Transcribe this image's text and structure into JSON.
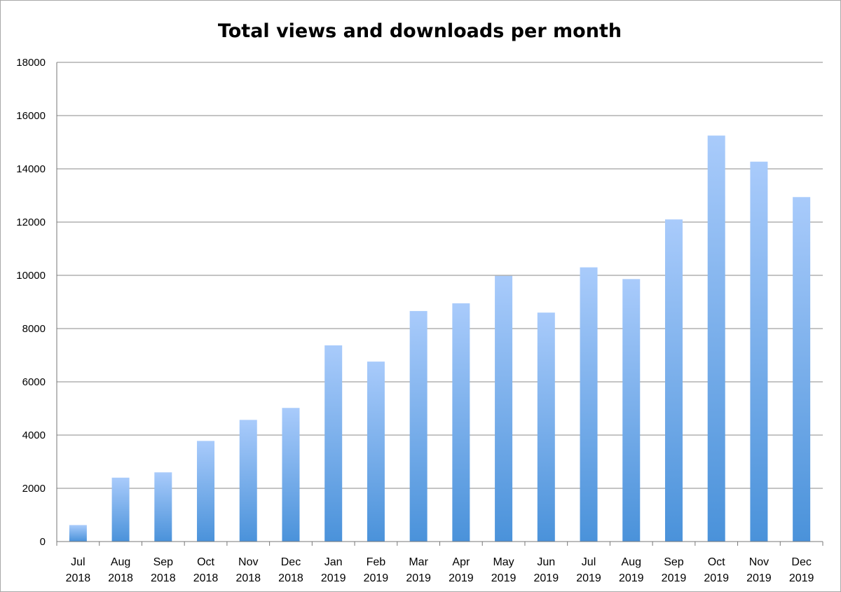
{
  "chart_data": {
    "type": "bar",
    "title": "Total views and downloads per month",
    "xlabel": "",
    "ylabel": "",
    "ylim": [
      0,
      18000
    ],
    "yticks": [
      "0",
      "2000",
      "4000",
      "6000",
      "8000",
      "10000",
      "12000",
      "14000",
      "16000",
      "18000"
    ],
    "grid": true,
    "legend": "none",
    "categories": [
      [
        "Jul",
        "2018"
      ],
      [
        "Aug",
        "2018"
      ],
      [
        "Sep",
        "2018"
      ],
      [
        "Oct",
        "2018"
      ],
      [
        "Nov",
        "2018"
      ],
      [
        "Dec",
        "2018"
      ],
      [
        "Jan",
        "2019"
      ],
      [
        "Feb",
        "2019"
      ],
      [
        "Mar",
        "2019"
      ],
      [
        "Apr",
        "2019"
      ],
      [
        "May",
        "2019"
      ],
      [
        "Jun",
        "2019"
      ],
      [
        "Jul",
        "2019"
      ],
      [
        "Aug",
        "2019"
      ],
      [
        "Sep",
        "2019"
      ],
      [
        "Oct",
        "2019"
      ],
      [
        "Nov",
        "2019"
      ],
      [
        "Dec",
        "2019"
      ]
    ],
    "values": [
      620,
      2400,
      2600,
      3780,
      4570,
      5020,
      7370,
      6760,
      8660,
      8950,
      9980,
      8600,
      10300,
      9860,
      12100,
      15250,
      14270,
      12940
    ],
    "colors": {
      "bar_top": "#a9cbfb",
      "bar_bottom": "#4a92da",
      "grid": "#888888",
      "axis": "#777777"
    }
  }
}
